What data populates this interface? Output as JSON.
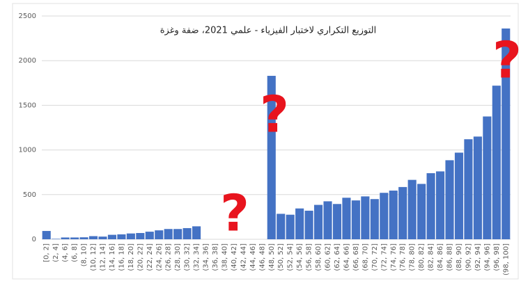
{
  "chart_data": {
    "type": "bar",
    "title": "التوزيع التكراري لاختبار الفيزياء - علمي 2021، ضفة وغزة",
    "categories": [
      "[0, 2]",
      "(2, 4]",
      "(4, 6]",
      "(6, 8]",
      "(8, 10]",
      "(10, 12]",
      "(12, 14]",
      "(14, 16]",
      "(16, 18]",
      "(18, 20]",
      "(20, 22]",
      "(22, 24]",
      "(24, 26]",
      "(26, 28]",
      "(28, 30]",
      "(30, 32]",
      "(32, 34]",
      "(34, 36]",
      "(36, 38]",
      "(38, 40]",
      "(40, 42]",
      "(42, 44]",
      "(44, 46]",
      "(46, 48]",
      "(48, 50]",
      "(50, 52]",
      "(52, 54]",
      "(54, 56]",
      "(56, 58]",
      "(58, 60]",
      "(60, 62]",
      "(62, 64]",
      "(64, 66]",
      "(66, 68]",
      "(68, 70]",
      "(70, 72]",
      "(72, 74]",
      "(74, 76]",
      "(76, 78]",
      "(78, 80]",
      "(80, 82]",
      "(82, 84]",
      "(84, 86]",
      "(86, 88]",
      "(88, 90]",
      "(90, 92]",
      "(92, 94]",
      "(94, 96]",
      "(96, 98]",
      "(98, 100]"
    ],
    "values": [
      93,
      5,
      20,
      20,
      22,
      35,
      30,
      50,
      55,
      65,
      70,
      85,
      100,
      115,
      115,
      125,
      145,
      0,
      0,
      0,
      0,
      0,
      0,
      0,
      1830,
      285,
      275,
      345,
      320,
      385,
      425,
      395,
      465,
      435,
      480,
      450,
      520,
      545,
      585,
      665,
      620,
      740,
      760,
      885,
      970,
      1120,
      1150,
      1375,
      1720,
      2360
    ],
    "color": "#4472c4",
    "ylim": [
      0,
      2500
    ],
    "yticks": [
      0,
      500,
      1000,
      1500,
      2000,
      2500
    ],
    "grid": true,
    "annotations": [
      "?",
      "?",
      "?"
    ],
    "annotation_color": "#e8141e"
  }
}
